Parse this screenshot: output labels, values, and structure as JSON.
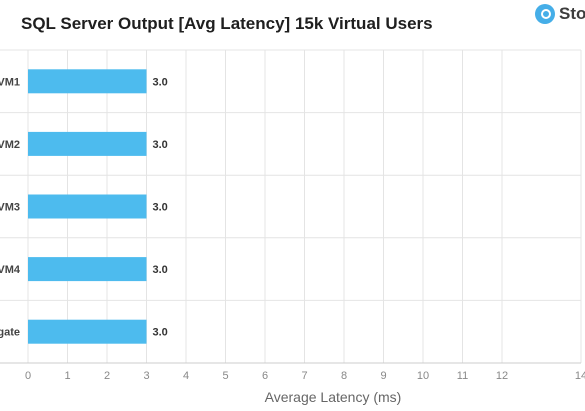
{
  "brand": {
    "text": "Sto",
    "icon": "storagereview-logo-icon",
    "color": "#45aee8"
  },
  "chart_data": {
    "type": "bar",
    "orientation": "horizontal",
    "title": "SQL Server Output [Avg Latency] 15k Virtual Users",
    "categories": [
      "VM1",
      "VM2",
      "VM3",
      "VM4",
      "gate"
    ],
    "values": [
      3.0,
      3.0,
      3.0,
      3.0,
      3.0
    ],
    "value_labels": [
      "3.0",
      "3.0",
      "3.0",
      "3.0",
      "3.0"
    ],
    "xlabel": "Average Latency (ms)",
    "ylabel": "",
    "xlim": [
      0,
      14
    ],
    "xticks": [
      "0",
      "1",
      "2",
      "3",
      "4",
      "5",
      "6",
      "7",
      "8",
      "9",
      "10",
      "11",
      "12",
      "14"
    ],
    "grid": true,
    "legend": "none",
    "bar_color": "#4dbbee"
  }
}
